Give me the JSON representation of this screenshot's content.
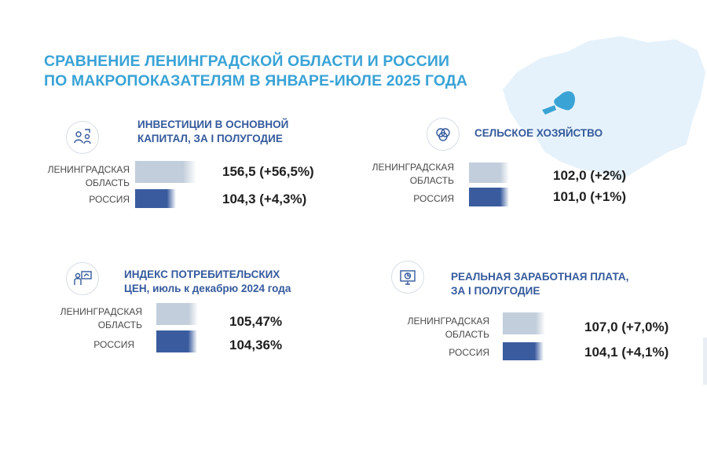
{
  "title": {
    "line1": "СРАВНЕНИЕ ЛЕНИНГРАДСКОЙ ОБЛАСТИ И РОССИИ",
    "line2": "ПО МАКРОПОКАЗАТЕЛЯМ В ЯНВАРЕ-ИЮЛЕ 2025 ГОДА"
  },
  "colors": {
    "title": "#3aa3d6",
    "panel_title": "#355a9c",
    "region_bar": "#c2cedb",
    "russia_bar": "#3a5c9e",
    "map": "#e6f2fb",
    "map_lake": "#3aa3d6"
  },
  "chart_data": [
    {
      "type": "bar",
      "title_lines": [
        "ИНВЕСТИЦИИ  В ОСНОВНОЙ",
        "КАПИТАЛ, ЗА I ПОЛУГОДИЕ"
      ],
      "icon": "investment-people-icon",
      "categories": [
        {
          "label_lines": [
            "ЛЕНИНГРАДСКАЯ",
            "ОБЛАСТЬ"
          ],
          "value": 156.5,
          "value_label": "156,5 (+56,5%)"
        },
        {
          "label_lines": [
            "РОССИЯ"
          ],
          "value": 104.3,
          "value_label": "104,3 (+4,3%)"
        }
      ]
    },
    {
      "type": "bar",
      "title_lines": [
        "СЕЛЬСКОЕ ХОЗЯЙСТВО"
      ],
      "icon": "agriculture-icon",
      "categories": [
        {
          "label_lines": [
            "ЛЕНИНГРАДСКАЯ",
            "ОБЛАСТЬ"
          ],
          "value": 102.0,
          "value_label": "102,0 (+2%)"
        },
        {
          "label_lines": [
            "РОССИЯ"
          ],
          "value": 101.0,
          "value_label": "101,0 (+1%)"
        }
      ]
    },
    {
      "type": "bar",
      "title_lines": [
        "ИНДЕКС ПОТРЕБИТЕЛЬСКИХ",
        "ЦЕН, июль к декабрю 2024 года"
      ],
      "icon": "presentation-icon",
      "categories": [
        {
          "label_lines": [
            "ЛЕНИНГРАДСКАЯ",
            "ОБЛАСТЬ"
          ],
          "value": 105.47,
          "value_label": "105,47%"
        },
        {
          "label_lines": [
            "РОССИЯ"
          ],
          "value": 104.36,
          "value_label": "104,36%"
        }
      ]
    },
    {
      "type": "bar",
      "title_lines": [
        "РЕАЛЬНАЯ ЗАРАБОТНАЯ ПЛАТА,",
        "ЗА I ПОЛУГОДИЕ"
      ],
      "icon": "monitor-chart-icon",
      "categories": [
        {
          "label_lines": [
            "ЛЕНИНГРАДСКАЯ",
            "ОБЛАСТЬ"
          ],
          "value": 107.0,
          "value_label": "107,0 (+7,0%)"
        },
        {
          "label_lines": [
            "РОССИЯ"
          ],
          "value": 104.1,
          "value_label": "104,1 (+4,1%)"
        }
      ]
    }
  ]
}
